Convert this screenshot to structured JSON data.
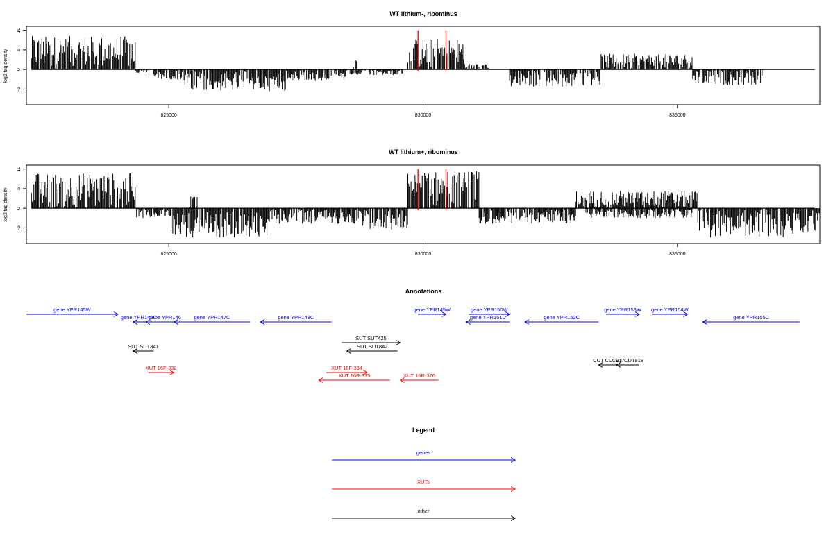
{
  "panels": [
    {
      "title": "WT lithium-, ribominus",
      "ylabel": "log2 tag density",
      "chart_data": {
        "type": "bar",
        "title": "WT lithium-, ribominus",
        "ylabel": "log2 tag density",
        "xlim": [
          822200,
          837800
        ],
        "ylim": [
          -9,
          11
        ],
        "xticks": [
          825000,
          830000,
          835000
        ],
        "yticks": [
          -5,
          0,
          5,
          10
        ],
        "grid": false,
        "regions": [
          {
            "start": 822300,
            "end": 824350,
            "min": 0,
            "max": 8.5,
            "sign": 1
          },
          {
            "start": 824350,
            "end": 824600,
            "min": 0,
            "max": 1,
            "sign": -1
          },
          {
            "start": 824700,
            "end": 825300,
            "min": 0,
            "max": 2.5,
            "sign": -1
          },
          {
            "start": 825300,
            "end": 827300,
            "min": 0.5,
            "max": 5.5,
            "sign": -1
          },
          {
            "start": 827300,
            "end": 828500,
            "min": 0,
            "max": 3,
            "sign": -1
          },
          {
            "start": 828500,
            "end": 829600,
            "min": 0,
            "max": 1.5,
            "sign": -1
          },
          {
            "start": 828600,
            "end": 828700,
            "min": 0,
            "max": 3,
            "sign": 1
          },
          {
            "start": 829700,
            "end": 830800,
            "min": 0,
            "max": 8,
            "sign": 1
          },
          {
            "start": 830800,
            "end": 831300,
            "min": 0,
            "max": 1.5,
            "sign": 1
          },
          {
            "start": 831700,
            "end": 833500,
            "min": 0,
            "max": 4.5,
            "sign": -1
          },
          {
            "start": 833500,
            "end": 835300,
            "min": 0,
            "max": 4,
            "sign": 1
          },
          {
            "start": 835300,
            "end": 836700,
            "min": 0,
            "max": 4,
            "sign": -1
          }
        ],
        "markers": [
          829900,
          830450
        ]
      }
    },
    {
      "title": "WT lithium+, ribominus",
      "ylabel": "log2 tag density",
      "chart_data": {
        "type": "bar",
        "title": "WT lithium+, ribominus",
        "ylabel": "log2 tag density",
        "xlim": [
          822200,
          837800
        ],
        "ylim": [
          -9,
          11
        ],
        "xticks": [
          825000,
          830000,
          835000
        ],
        "yticks": [
          -5,
          0,
          5,
          10
        ],
        "grid": false,
        "regions": [
          {
            "start": 822300,
            "end": 824350,
            "min": 0,
            "max": 9,
            "sign": 1
          },
          {
            "start": 824350,
            "end": 825000,
            "min": 0,
            "max": 2.5,
            "sign": -1
          },
          {
            "start": 825000,
            "end": 827000,
            "min": 1,
            "max": 7.5,
            "sign": -1
          },
          {
            "start": 825400,
            "end": 825600,
            "min": 0,
            "max": 3.5,
            "sign": 1
          },
          {
            "start": 827000,
            "end": 828800,
            "min": 0,
            "max": 4,
            "sign": -1
          },
          {
            "start": 828800,
            "end": 829700,
            "min": 0,
            "max": 5.5,
            "sign": -1
          },
          {
            "start": 829700,
            "end": 831100,
            "min": 0,
            "max": 9.5,
            "sign": 1
          },
          {
            "start": 831100,
            "end": 833000,
            "min": 0,
            "max": 4,
            "sign": -1
          },
          {
            "start": 833000,
            "end": 835400,
            "min": 0,
            "max": 4.5,
            "sign": 1
          },
          {
            "start": 833200,
            "end": 835300,
            "min": 0,
            "max": 2.5,
            "sign": -1
          },
          {
            "start": 835400,
            "end": 837800,
            "min": 0,
            "max": 7.5,
            "sign": -1
          }
        ],
        "markers": [
          829900,
          830450
        ]
      }
    }
  ],
  "annotations": {
    "title": "Annotations",
    "items": [
      {
        "label": "gene YPR145W",
        "start": 822200,
        "end": 824000,
        "row": 1,
        "dir": "+",
        "color": "#0000ff"
      },
      {
        "label": "gene YPR145C-",
        "start": 824300,
        "end": 824550,
        "row": 2,
        "dir": "-",
        "color": "#0000ff"
      },
      {
        "label": "gene YPR146",
        "start": 824550,
        "end": 825300,
        "row": 2,
        "dir": "-",
        "color": "#0000ff"
      },
      {
        "label": "gene YPR147C",
        "start": 825100,
        "end": 826600,
        "row": 2,
        "dir": "-",
        "color": "#0000ff"
      },
      {
        "label": "gene YPR148C",
        "start": 826800,
        "end": 828200,
        "row": 2,
        "dir": "-",
        "color": "#0000ff"
      },
      {
        "label": "gene YPR149W",
        "start": 829900,
        "end": 830450,
        "row": 1,
        "dir": "+",
        "color": "#0000ff"
      },
      {
        "label": "gene YPR150W",
        "start": 830900,
        "end": 831700,
        "row": 1,
        "dir": "+",
        "color": "#0000ff"
      },
      {
        "label": "gene YPR151C",
        "start": 830850,
        "end": 831700,
        "row": 2,
        "dir": "-",
        "color": "#0000ff"
      },
      {
        "label": "gene YPR152C",
        "start": 832000,
        "end": 833450,
        "row": 2,
        "dir": "-",
        "color": "#0000ff"
      },
      {
        "label": "gene YPR153W",
        "start": 833600,
        "end": 834250,
        "row": 1,
        "dir": "+",
        "color": "#0000ff"
      },
      {
        "label": "gene YPR154W",
        "start": 834500,
        "end": 835200,
        "row": 1,
        "dir": "+",
        "color": "#0000ff"
      },
      {
        "label": "gene YPR155C",
        "start": 835500,
        "end": 837400,
        "row": 2,
        "dir": "-",
        "color": "#0000ff"
      },
      {
        "label": "SUT SUT425",
        "start": 828400,
        "end": 829550,
        "row": 3,
        "dir": "+",
        "color": "#000000"
      },
      {
        "label": "SUT SUT842",
        "start": 828500,
        "end": 829500,
        "row": 4,
        "dir": "-",
        "color": "#000000"
      },
      {
        "label": "SUT SUT841",
        "start": 824300,
        "end": 824700,
        "row": 4,
        "dir": "-",
        "color": "#000000"
      },
      {
        "label": "CUT CUT917",
        "start": 833450,
        "end": 833850,
        "row": 5,
        "dir": "-",
        "color": "#000000"
      },
      {
        "label": "CUT CUT918",
        "start": 833800,
        "end": 834250,
        "row": 5,
        "dir": "-",
        "color": "#000000"
      },
      {
        "label": "XUT 16F-332",
        "start": 824600,
        "end": 825100,
        "row": 6,
        "dir": "+",
        "color": "#ff0000"
      },
      {
        "label": "XUT 16F-334",
        "start": 828100,
        "end": 828900,
        "row": 6,
        "dir": "+",
        "color": "#ff0000"
      },
      {
        "label": "XUT 16R-375",
        "start": 827950,
        "end": 829350,
        "row": 7,
        "dir": "-",
        "color": "#ff0000"
      },
      {
        "label": "XUT 16R-376",
        "start": 829550,
        "end": 830300,
        "row": 7,
        "dir": "-",
        "color": "#ff0000"
      }
    ]
  },
  "legend": {
    "title": "Legend",
    "entries": [
      {
        "label": "genes",
        "color": "#0000ff"
      },
      {
        "label": "XUTs",
        "color": "#ff0000"
      },
      {
        "label": "other",
        "color": "#000000"
      }
    ]
  },
  "colors": {
    "axis": "#000000",
    "bars": "#000000",
    "marker": "#ff0000",
    "gene": "#0000ff",
    "xut": "#ff0000",
    "other": "#000000"
  }
}
